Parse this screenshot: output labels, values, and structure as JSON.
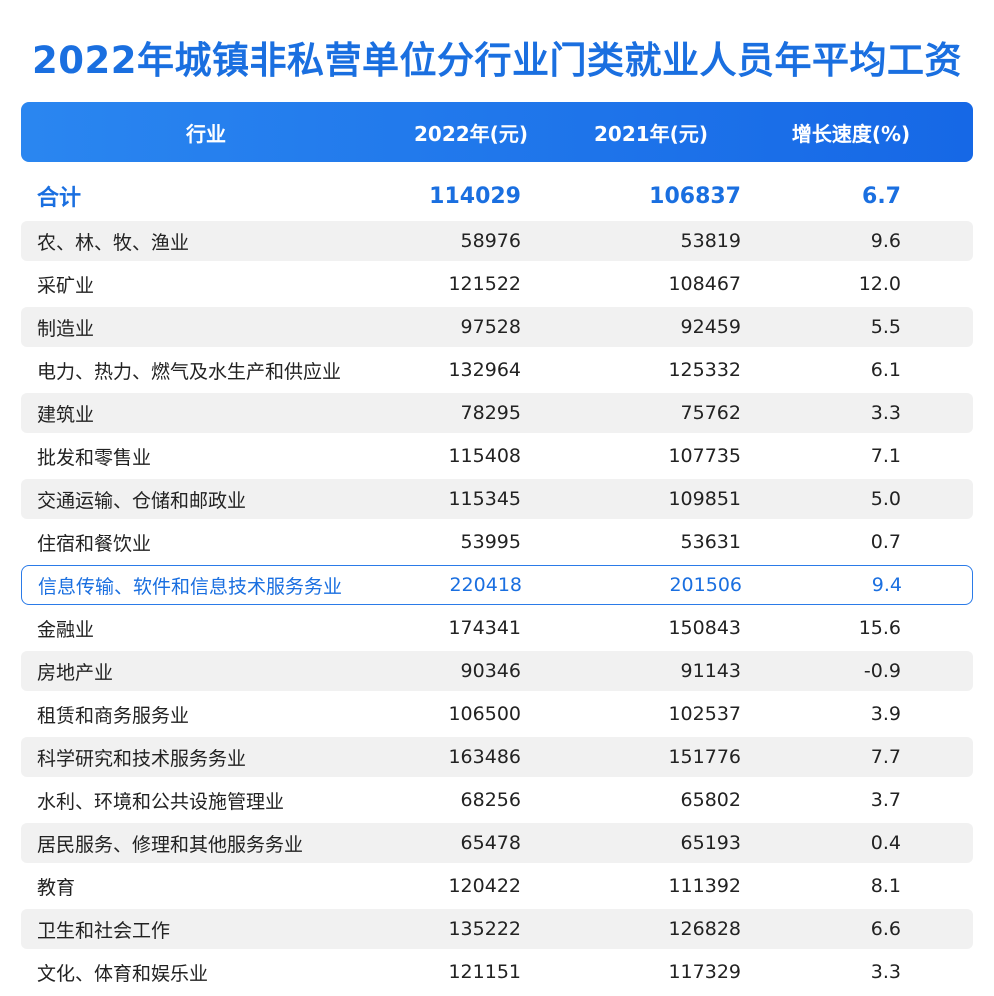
{
  "title": "2022年城镇非私营单位分行业门类就业人员年平均工资",
  "colors": {
    "accent": "#1a6fe0",
    "header_bg": "#1668e6",
    "stripe": "#f1f1f1"
  },
  "chart_data": {
    "type": "table",
    "columns": [
      "行业",
      "2022年(元)",
      "2021年(元)",
      "增长速度(%)"
    ],
    "total": {
      "industry": "合计",
      "y2022": "114029",
      "y2021": "106837",
      "growth": "6.7"
    },
    "rows": [
      {
        "industry": "农、林、牧、渔业",
        "y2022": "58976",
        "y2021": "53819",
        "growth": "9.6"
      },
      {
        "industry": "采矿业",
        "y2022": "121522",
        "y2021": "108467",
        "growth": "12.0"
      },
      {
        "industry": "制造业",
        "y2022": "97528",
        "y2021": "92459",
        "growth": "5.5"
      },
      {
        "industry": "电力、热力、燃气及水生产和供应业",
        "y2022": "132964",
        "y2021": "125332",
        "growth": "6.1"
      },
      {
        "industry": "建筑业",
        "y2022": "78295",
        "y2021": "75762",
        "growth": "3.3"
      },
      {
        "industry": "批发和零售业",
        "y2022": "115408",
        "y2021": "107735",
        "growth": "7.1"
      },
      {
        "industry": "交通运输、仓储和邮政业",
        "y2022": "115345",
        "y2021": "109851",
        "growth": "5.0"
      },
      {
        "industry": "住宿和餐饮业",
        "y2022": "53995",
        "y2021": "53631",
        "growth": "0.7"
      },
      {
        "industry": "信息传输、软件和信息技术服务务业",
        "y2022": "220418",
        "y2021": "201506",
        "growth": "9.4",
        "highlight": true
      },
      {
        "industry": "金融业",
        "y2022": "174341",
        "y2021": "150843",
        "growth": "15.6"
      },
      {
        "industry": "房地产业",
        "y2022": "90346",
        "y2021": "91143",
        "growth": "-0.9"
      },
      {
        "industry": "租赁和商务服务业",
        "y2022": "106500",
        "y2021": "102537",
        "growth": "3.9"
      },
      {
        "industry": "科学研究和技术服务务业",
        "y2022": "163486",
        "y2021": "151776",
        "growth": "7.7"
      },
      {
        "industry": "水利、环境和公共设施管理业",
        "y2022": "68256",
        "y2021": "65802",
        "growth": "3.7"
      },
      {
        "industry": "居民服务、修理和其他服务务业",
        "y2022": "65478",
        "y2021": "65193",
        "growth": "0.4"
      },
      {
        "industry": "教育",
        "y2022": "120422",
        "y2021": "111392",
        "growth": "8.1"
      },
      {
        "industry": "卫生和社会工作",
        "y2022": "135222",
        "y2021": "126828",
        "growth": "6.6"
      },
      {
        "industry": "文化、体育和娱乐业",
        "y2022": "121151",
        "y2021": "117329",
        "growth": "3.3"
      }
    ]
  }
}
